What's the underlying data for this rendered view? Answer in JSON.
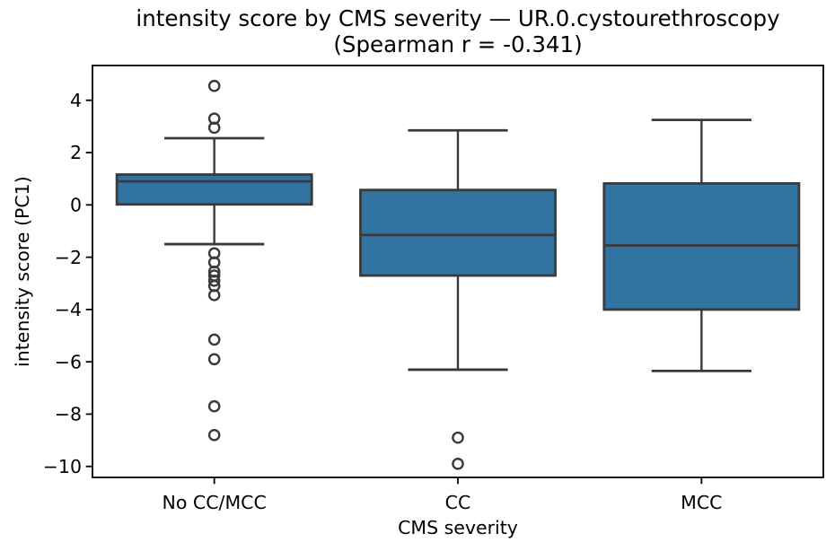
{
  "chart_data": {
    "type": "box",
    "title": "intensity score by CMS severity — UR.0.cystourethroscopy",
    "subtitle": "(Spearman r = -0.341)",
    "xlabel": "CMS severity",
    "ylabel": "intensity score (PC1)",
    "categories": [
      "No CC/MCC",
      "CC",
      "MCC"
    ],
    "ylim": [
      -10.42,
      5.33
    ],
    "yticks": [
      4,
      2,
      0,
      -2,
      -4,
      -6,
      -8,
      -10
    ],
    "ytick_labels": [
      "4",
      "2",
      "0",
      "−2",
      "−4",
      "−6",
      "−8",
      "−10"
    ],
    "grid": false,
    "legend": "none",
    "boxes": [
      {
        "label": "No CC/MCC",
        "whislo": -1.5,
        "q1": 0.02,
        "med": 0.9,
        "q3": 1.16,
        "whishi": 2.55,
        "outliers": [
          4.55,
          3.3,
          2.95,
          -1.85,
          -2.2,
          -2.55,
          -2.7,
          -2.9,
          -3.1,
          -3.45,
          -5.15,
          -5.9,
          -7.7,
          -8.8
        ]
      },
      {
        "label": "CC",
        "whislo": -6.3,
        "q1": -2.7,
        "med": -1.15,
        "q3": 0.57,
        "whishi": 2.85,
        "outliers": [
          -8.9,
          -9.9
        ]
      },
      {
        "label": "MCC",
        "whislo": -6.35,
        "q1": -4.0,
        "med": -1.55,
        "q3": 0.82,
        "whishi": 3.25,
        "outliers": []
      }
    ],
    "colors": {
      "box_fill": "#3274A1",
      "box_edge": "#3A3A3A",
      "spine": "#000000",
      "text": "#000000",
      "background": "#FFFFFF"
    }
  }
}
